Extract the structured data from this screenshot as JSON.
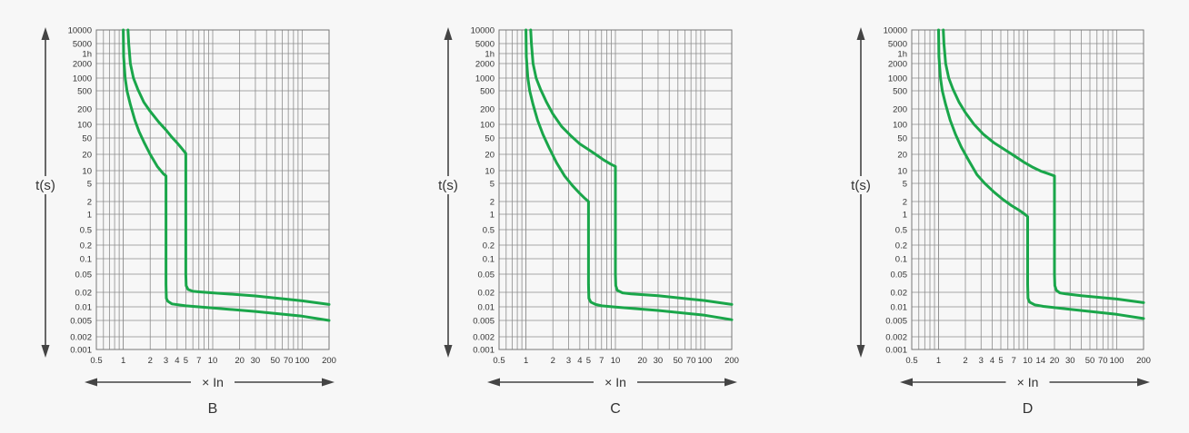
{
  "colors": {
    "background": "#f7f7f7",
    "grid": "#8c8c8c",
    "curve": "#1aa64a",
    "axis_text": "#333333",
    "arrow": "#444444"
  },
  "chart_data": [
    {
      "type": "line",
      "title": "B",
      "xlabel": "× In",
      "ylabel": "t(s)",
      "x_scale": "log",
      "y_scale": "log",
      "xlim": [
        0.5,
        200
      ],
      "ylim": [
        0.001,
        10000
      ],
      "grid": true,
      "x_tick_labels": [
        "0.5",
        "1",
        "2",
        "3",
        "4",
        "5",
        "7",
        "10",
        "20",
        "30",
        "50",
        "70",
        "100",
        "200"
      ],
      "y_tick_labels": [
        "10000",
        "5000",
        "1h",
        "2000",
        "1000",
        "500",
        "200",
        "100",
        "50",
        "20",
        "10",
        "5",
        "2",
        "1",
        "0.5",
        "0.2",
        "0.1",
        "0.05",
        "0.02",
        "0.01",
        "0.005",
        "0.002",
        "0.001"
      ],
      "series": [
        {
          "x": [
            1.0,
            1.01,
            1.05,
            1.1,
            1.2,
            1.35,
            1.5,
            1.7,
            2.0,
            2.4,
            2.8,
            3.0,
            3.0,
            3.0,
            3.03,
            3.15,
            3.5,
            5.0,
            10,
            30,
            100,
            200
          ],
          "y": [
            10000,
            3000,
            1000,
            500,
            250,
            120,
            70,
            40,
            20,
            12,
            8.5,
            7.5,
            3,
            0.03,
            0.015,
            0.013,
            0.0115,
            0.0105,
            0.0094,
            0.0079,
            0.0062,
            0.005
          ]
        },
        {
          "x": [
            1.13,
            1.15,
            1.2,
            1.3,
            1.45,
            1.7,
            2.0,
            2.5,
            3.0,
            3.5,
            4.0,
            4.5,
            5.0,
            5.0,
            5.0,
            5.05,
            5.3,
            6.0,
            7.0,
            10,
            30,
            100,
            200
          ],
          "y": [
            10000,
            5000,
            2000,
            1000,
            550,
            280,
            180,
            110,
            75,
            52,
            38,
            28,
            21,
            20,
            0.05,
            0.028,
            0.023,
            0.021,
            0.0205,
            0.0195,
            0.0168,
            0.0133,
            0.0112
          ]
        }
      ]
    },
    {
      "type": "line",
      "title": "C",
      "xlabel": "× In",
      "ylabel": "t(s)",
      "x_scale": "log",
      "y_scale": "log",
      "xlim": [
        0.5,
        200
      ],
      "ylim": [
        0.001,
        10000
      ],
      "grid": true,
      "x_tick_labels": [
        "0.5",
        "1",
        "2",
        "3",
        "4",
        "5",
        "7",
        "10",
        "20",
        "30",
        "50",
        "70",
        "100",
        "200"
      ],
      "y_tick_labels": [
        "10000",
        "5000",
        "1h",
        "2000",
        "1000",
        "500",
        "200",
        "100",
        "50",
        "20",
        "10",
        "5",
        "2",
        "1",
        "0.5",
        "0.2",
        "0.1",
        "0.05",
        "0.02",
        "0.01",
        "0.005",
        "0.002",
        "0.001"
      ],
      "series": [
        {
          "x": [
            1.0,
            1.01,
            1.05,
            1.1,
            1.2,
            1.35,
            1.55,
            1.8,
            2.2,
            2.7,
            3.3,
            4.0,
            4.6,
            5.0,
            5.0,
            5.0,
            5.05,
            5.3,
            6.0,
            7.0,
            10,
            30,
            100,
            200
          ],
          "y": [
            10000,
            3000,
            1000,
            500,
            250,
            120,
            60,
            30,
            14,
            7.5,
            4.5,
            3.0,
            2.3,
            2.0,
            0.5,
            0.03,
            0.015,
            0.0125,
            0.0112,
            0.0105,
            0.0099,
            0.0083,
            0.0065,
            0.0052
          ]
        },
        {
          "x": [
            1.13,
            1.15,
            1.2,
            1.3,
            1.45,
            1.7,
            2.0,
            2.5,
            3.2,
            4.0,
            5.0,
            6.0,
            7.5,
            9.0,
            10,
            10,
            10,
            10.1,
            10.5,
            12,
            15,
            30,
            100,
            200
          ],
          "y": [
            10000,
            5000,
            2000,
            1000,
            550,
            280,
            160,
            90,
            55,
            36,
            26,
            20,
            15.5,
            13,
            12,
            10,
            0.05,
            0.028,
            0.022,
            0.0195,
            0.0185,
            0.017,
            0.0135,
            0.0112
          ]
        }
      ]
    },
    {
      "type": "line",
      "title": "D",
      "xlabel": "× In",
      "ylabel": "t(s)",
      "x_scale": "log",
      "y_scale": "log",
      "xlim": [
        0.5,
        200
      ],
      "ylim": [
        0.001,
        10000
      ],
      "grid": true,
      "x_tick_labels": [
        "0.5",
        "1",
        "2",
        "3",
        "4",
        "5",
        "7",
        "10",
        "14",
        "20",
        "30",
        "50",
        "70",
        "100",
        "200"
      ],
      "y_tick_labels": [
        "10000",
        "5000",
        "1h",
        "2000",
        "1000",
        "500",
        "200",
        "100",
        "50",
        "20",
        "10",
        "5",
        "2",
        "1",
        "0.5",
        "0.2",
        "0.1",
        "0.05",
        "0.02",
        "0.01",
        "0.005",
        "0.002",
        "0.001"
      ],
      "series": [
        {
          "x": [
            1.0,
            1.01,
            1.05,
            1.1,
            1.2,
            1.35,
            1.55,
            1.8,
            2.2,
            2.7,
            3.3,
            4.2,
            5.3,
            6.6,
            8.0,
            9.3,
            10,
            10,
            10,
            10.1,
            10.5,
            12,
            15,
            30,
            100,
            200
          ],
          "y": [
            10000,
            3000,
            1000,
            500,
            250,
            120,
            60,
            30,
            15,
            8,
            5,
            3.2,
            2.2,
            1.6,
            1.25,
            1.0,
            0.9,
            0.5,
            0.03,
            0.015,
            0.0125,
            0.011,
            0.0102,
            0.0088,
            0.0068,
            0.0055
          ]
        },
        {
          "x": [
            1.13,
            1.15,
            1.2,
            1.3,
            1.45,
            1.7,
            2.0,
            2.5,
            3.2,
            4.2,
            5.5,
            7.0,
            9.0,
            11.5,
            14,
            17,
            20,
            20,
            20,
            20.2,
            21,
            23,
            27,
            40,
            100,
            200
          ],
          "y": [
            10000,
            5000,
            2000,
            1000,
            550,
            280,
            170,
            100,
            60,
            38,
            26,
            19,
            14.5,
            11.5,
            9.8,
            8.5,
            7.5,
            5,
            0.05,
            0.028,
            0.022,
            0.0195,
            0.0185,
            0.017,
            0.0145,
            0.0122
          ]
        }
      ]
    }
  ]
}
